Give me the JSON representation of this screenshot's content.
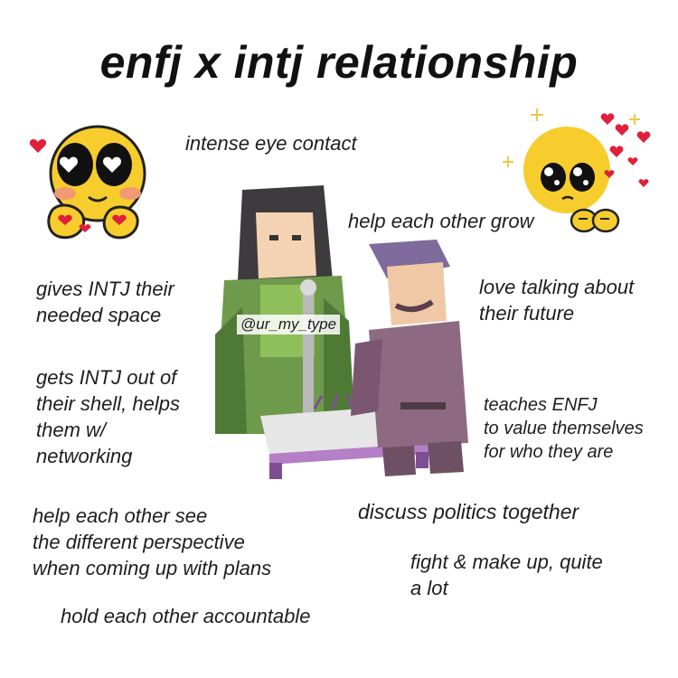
{
  "title": "enfj x intj relationship",
  "watermark": "@ur_my_type",
  "captions": {
    "eye_contact": "intense eye contact",
    "grow": "help each other grow",
    "space_1": "gives INTJ their",
    "space_2": "needed space",
    "future_1": "love talking about",
    "future_2": "their future",
    "shell_1": "gets INTJ out of",
    "shell_2": "their shell, helps",
    "shell_3": "them w/",
    "shell_4": "networking",
    "value_1": "teaches ENFJ",
    "value_2": "to value themselves",
    "value_3": "for who they are",
    "politics": "discuss politics together",
    "perspective_1": "help each other see",
    "perspective_2": "the different perspective",
    "perspective_3": "when coming up with plans",
    "fight_1": "fight & make up, quite",
    "fight_2": "a lot",
    "accountable": "hold each other accountable"
  },
  "icons": {
    "left_emoji": "heart-eyes-emoji-icon",
    "right_emoji": "pleading-emoji-icon",
    "characters": "two-characters-illustration"
  },
  "colors": {
    "emoji_yellow": "#f7cd2e",
    "heart_red": "#e0203a",
    "green_robe": "#6f9a4c",
    "purple_suit": "#8e6a82"
  }
}
